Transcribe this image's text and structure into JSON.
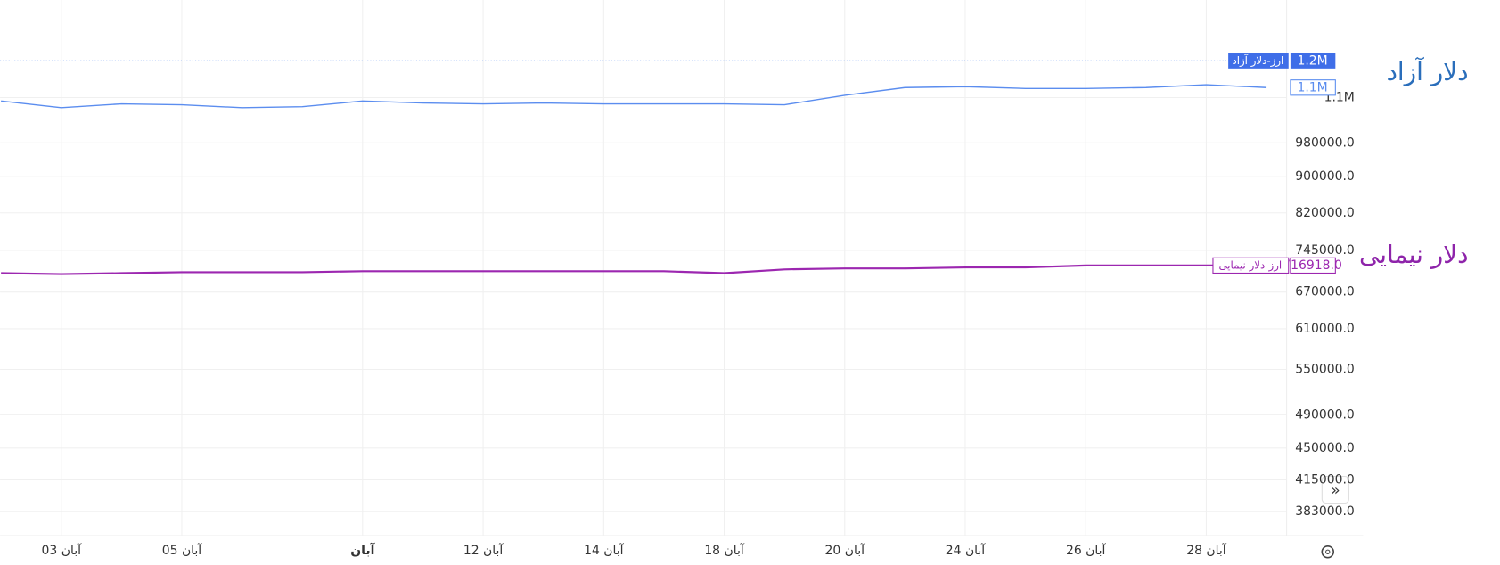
{
  "chart_data": {
    "type": "line",
    "categories": [
      null,
      "03 آبان",
      null,
      "05 آبان",
      null,
      null,
      "آبان",
      null,
      "12 آبان",
      null,
      "14 آبان",
      null,
      "18 آبان",
      null,
      "20 آبان",
      null,
      "24 آبان",
      null,
      "26 آبان",
      null,
      "28 آبان",
      null
    ],
    "series": [
      {
        "name": "ارز-دلار آزاد",
        "color": "#5b8def",
        "values": [
          1090500,
          1072000,
          1082500,
          1080000,
          1072000,
          1074700,
          1090500,
          1085000,
          1082500,
          1085000,
          1082500,
          1082500,
          1082500,
          1080000,
          1106500,
          1128400,
          1131000,
          1125700,
          1125700,
          1128400,
          1136700,
          1128400
        ],
        "value_labels": [
          null,
          null,
          null,
          null,
          null,
          null,
          null,
          null,
          null,
          null,
          null,
          null,
          null,
          null,
          null,
          null,
          null,
          null,
          null,
          null,
          null,
          "1.1M"
        ]
      },
      {
        "name": "ارز-دلار نیمایی",
        "color": "#9c27b0",
        "values": [
          703000,
          701300,
          703000,
          704700,
          704700,
          704700,
          706500,
          706500,
          706500,
          706500,
          706500,
          706500,
          703000,
          709800,
          711600,
          711600,
          713400,
          713400,
          716918,
          716918,
          716918,
          716918
        ],
        "value_labels": [
          null,
          null,
          null,
          null,
          null,
          null,
          null,
          null,
          null,
          null,
          null,
          null,
          null,
          null,
          null,
          null,
          null,
          null,
          null,
          null,
          null,
          "716918.0"
        ]
      }
    ],
    "price_line": {
      "value": 1208000,
      "label": "1.2M"
    },
    "annotations": [
      "دلار آزاد",
      "دلار نیمایی"
    ],
    "log_scale": true,
    "grid": true,
    "ylim": [
      360000,
      1370000
    ],
    "yticks": [
      {
        "value": 383000,
        "label": "383000.0"
      },
      {
        "value": 415000,
        "label": "415000.0"
      },
      {
        "value": 450000,
        "label": "450000.0"
      },
      {
        "value": 490000,
        "label": "490000.0"
      },
      {
        "value": 550000,
        "label": "550000.0"
      },
      {
        "value": 610000,
        "label": "610000.0"
      },
      {
        "value": 670000,
        "label": "670000.0"
      },
      {
        "value": 745000,
        "label": "745000.0"
      },
      {
        "value": 820000,
        "label": "820000.0"
      },
      {
        "value": 900000,
        "label": "900000.0"
      },
      {
        "value": 980000,
        "label": "980000.0"
      },
      {
        "value": 1100000,
        "label": "1.1M"
      }
    ]
  }
}
